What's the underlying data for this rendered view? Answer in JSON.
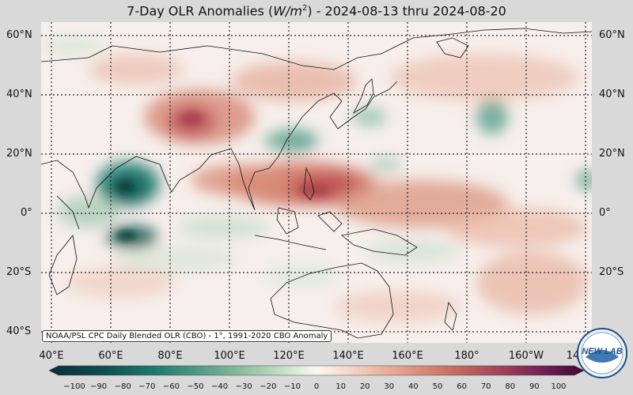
{
  "title": {
    "prefix": "7-Day OLR Anomalies (",
    "unit_main": "W/m",
    "unit_exp": "2",
    "suffix": ") - 2024-08-13 thru 2024-08-20"
  },
  "source_note": "NOAA/PSL CPC Daily Blended OLR (CBO) - 1°, 1991-2020 CBO Anomaly",
  "lat_labels": [
    "60°N",
    "40°N",
    "20°N",
    "0°",
    "20°S",
    "40°S"
  ],
  "lon_labels": [
    "40°E",
    "60°E",
    "80°E",
    "100°E",
    "120°E",
    "140°E",
    "160°E",
    "180°",
    "160°W",
    "14"
  ],
  "colorbar": {
    "ticks": [
      "−100",
      "−90",
      "−80",
      "−70",
      "−60",
      "−50",
      "−40",
      "−30",
      "−20",
      "−10",
      "0",
      "10",
      "20",
      "30",
      "40",
      "50",
      "60",
      "70",
      "80",
      "90",
      "100"
    ],
    "colors": {
      "strong_negative": "#0b3d3a",
      "negative": "#1f7a6e",
      "weak_negative": "#cfe3cf",
      "neutral": "#f9f4f1",
      "weak_positive": "#f3c9b4",
      "positive": "#c9705f",
      "strong_positive": "#5a1445"
    }
  },
  "logo": {
    "text": "NEW LAB"
  }
}
